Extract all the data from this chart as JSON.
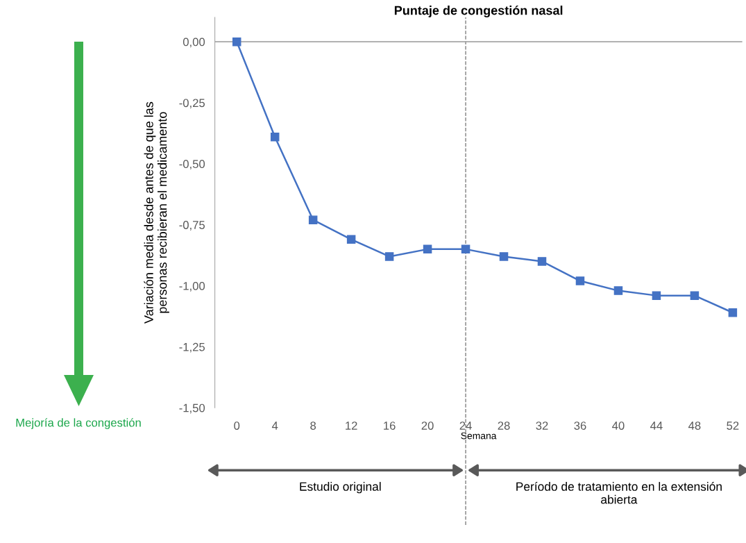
{
  "chart_data": {
    "type": "line",
    "title": "Puntaje de congestión nasal",
    "xlabel": "Semana",
    "ylabel": "Variación media desde antes de que las\npersonas recibieran el medicamento",
    "x": [
      0,
      4,
      8,
      12,
      16,
      20,
      24,
      28,
      32,
      36,
      40,
      44,
      48,
      52
    ],
    "series": [
      {
        "color": "#4472c4",
        "values": [
          0,
          -0.39,
          -0.73,
          -0.81,
          -0.88,
          -0.85,
          -0.85,
          -0.88,
          -0.9,
          -0.98,
          -1.02,
          -1.04,
          -1.04,
          -1.11
        ]
      }
    ],
    "xlim": [
      -2.3,
      53
    ],
    "xticks": [
      0,
      4,
      8,
      12,
      16,
      20,
      24,
      28,
      32,
      36,
      40,
      44,
      48,
      52
    ],
    "ylim": [
      -1.5,
      0.1
    ],
    "yticks": [
      {
        "value": 0,
        "label": "0,00"
      },
      {
        "value": -0.25,
        "label": "-0,25"
      },
      {
        "value": -0.5,
        "label": "-0,50"
      },
      {
        "value": -0.75,
        "label": "-0,75"
      },
      {
        "value": -1,
        "label": "-1,00"
      },
      {
        "value": -1.25,
        "label": "-1,25"
      },
      {
        "value": -1.5,
        "label": "-1,50"
      }
    ],
    "marker": "square",
    "line_style": "solid",
    "grid": false,
    "legend": false,
    "ref_lines": [
      {
        "axis": "x",
        "value": 24,
        "color": "#808080",
        "line_style": "dashed"
      },
      {
        "axis": "y",
        "value": 0,
        "color": "#a6a6a6",
        "line_style": "solid"
      }
    ],
    "annotations": [
      "Estudio original",
      "Período de tratamiento en la extensión abierta",
      "Mejoría de la congestión"
    ]
  }
}
